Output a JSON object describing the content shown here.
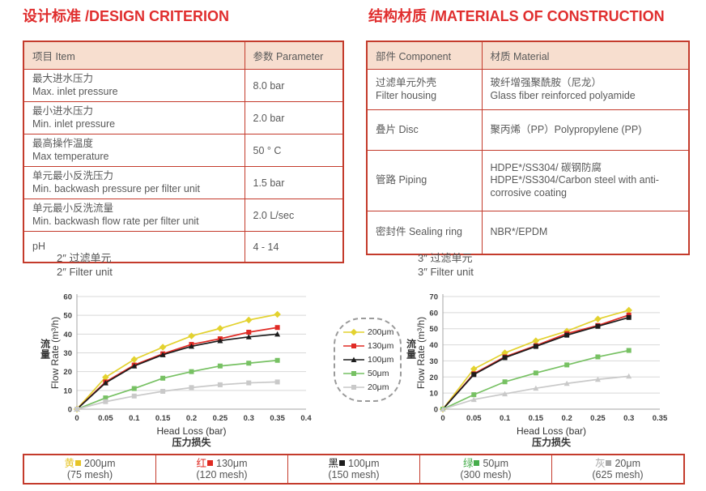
{
  "design": {
    "heading": "设计标准 /DESIGN CRITERION",
    "col_item": "项目 Item",
    "col_param": "参数 Parameter",
    "rows": [
      {
        "zh": "最大进水压力",
        "en": "Max. inlet pressure",
        "value": "8.0 bar"
      },
      {
        "zh": "最小进水压力",
        "en": "Min. inlet pressure",
        "value": "2.0 bar"
      },
      {
        "zh": "最高操作温度",
        "en": "Max temperature",
        "value": "50 ° C"
      },
      {
        "zh": "单元最小反洗压力",
        "en": "Min. backwash pressure per filter unit",
        "value": "1.5 bar"
      },
      {
        "zh": "单元最小反洗流量",
        "en": "Min. backwash flow rate per filter unit",
        "value": "2.0 L/sec"
      },
      {
        "zh": "pH",
        "value": "4 - 14"
      }
    ]
  },
  "materials": {
    "heading": "结构材质 /MATERIALS OF CONSTRUCTION",
    "col_component": "部件 Component",
    "col_material": "材质 Material",
    "rows": [
      {
        "c1": "过滤单元外壳",
        "c2": "Filter housing",
        "m1": "玻纤增强聚酰胺（尼龙）",
        "m2": "Glass fiber reinforced polyamide"
      },
      {
        "c1": "叠片 Disc",
        "m1": "聚丙烯（PP）Polypropylene (PP)"
      },
      {
        "c1": "管路 Piping",
        "m1": "HDPE*/SS304/ 碳钢防腐",
        "m2": "HDPE*/SS304/Carbon steel with anti-corrosive coating"
      },
      {
        "c1": "密封件 Sealing ring",
        "m1": "NBR*/EPDM"
      }
    ]
  },
  "chart_data": [
    {
      "type": "line",
      "title_zh": "2″ 过滤单元",
      "title_en": "2″ Filter unit",
      "xlabel": "Head Loss (bar)",
      "xlabel_zh": "压力损失",
      "ylabel_zh": "流量",
      "ylabel": "Flow Rate (m³/h)",
      "xlim": [
        0,
        0.4
      ],
      "ylim": [
        0,
        60
      ],
      "xticks": [
        "0",
        "0.05",
        "0.1",
        "0.15",
        "0.2",
        "0.25",
        "0.3",
        "0.35",
        "0.4"
      ],
      "yticks": [
        0,
        10,
        20,
        30,
        40,
        50,
        60
      ],
      "grid": true,
      "legend_position": "right-outside",
      "x": [
        0,
        0.05,
        0.1,
        0.15,
        0.2,
        0.25,
        0.3,
        0.35
      ],
      "series": [
        {
          "name": "200μm",
          "color": "#e3d22f",
          "marker": "diamond",
          "values": [
            0,
            17,
            26.5,
            33,
            39,
            43,
            47.5,
            50.5
          ]
        },
        {
          "name": "130μm",
          "color": "#e02b25",
          "marker": "square",
          "values": [
            0,
            14.5,
            23.5,
            29.5,
            34.5,
            37.5,
            41,
            43.5
          ]
        },
        {
          "name": "100μm",
          "color": "#1c1c1c",
          "marker": "triangle",
          "values": [
            0,
            14,
            23,
            29,
            33.5,
            36.5,
            38.5,
            40
          ]
        },
        {
          "name": "50μm",
          "color": "#77c163",
          "marker": "square",
          "values": [
            0,
            6,
            11,
            16.5,
            20,
            23,
            24.5,
            26
          ]
        },
        {
          "name": "20μm",
          "color": "#c9c9c9",
          "marker": "square",
          "values": [
            0,
            4,
            7,
            9.5,
            11.5,
            13,
            14,
            14.5
          ]
        }
      ]
    },
    {
      "type": "line",
      "title_zh": "3″ 过滤单元",
      "title_en": "3″ Filter unit",
      "xlabel": "Head Loss (bar)",
      "xlabel_zh": "压力损失",
      "ylabel_zh": "流量",
      "ylabel": "Flow Rate (m³/h)",
      "xlim": [
        0,
        0.35
      ],
      "ylim": [
        0,
        70
      ],
      "xticks": [
        "0",
        "0.05",
        "0.1",
        "0.15",
        "0.2",
        "0.25",
        "0.3",
        "0.35"
      ],
      "yticks": [
        0,
        10,
        20,
        30,
        40,
        50,
        60,
        70
      ],
      "grid": true,
      "legend_position": "none",
      "x": [
        0,
        0.05,
        0.1,
        0.15,
        0.2,
        0.25,
        0.3
      ],
      "series": [
        {
          "name": "200μm",
          "color": "#e3d22f",
          "marker": "diamond",
          "values": [
            0,
            25,
            35,
            42.5,
            48.5,
            56,
            61.5
          ]
        },
        {
          "name": "130μm",
          "color": "#e02b25",
          "marker": "square",
          "values": [
            0,
            22,
            32.5,
            39.5,
            47,
            52,
            58.5
          ]
        },
        {
          "name": "100μm",
          "color": "#1c1c1c",
          "marker": "square",
          "values": [
            0,
            21.5,
            32,
            39,
            46,
            51.5,
            57
          ]
        },
        {
          "name": "50μm",
          "color": "#77c163",
          "marker": "square",
          "values": [
            0,
            9,
            17,
            22.5,
            27.5,
            32.5,
            36.5
          ]
        },
        {
          "name": "20μm",
          "color": "#c9c9c9",
          "marker": "triangle",
          "values": [
            0,
            6,
            9.5,
            13,
            16,
            18.5,
            20.5
          ]
        }
      ]
    }
  ],
  "mid_legend": {
    "items": [
      {
        "label": "200μm",
        "color": "#e3d22f",
        "marker": "diamond"
      },
      {
        "label": "130μm",
        "color": "#e02b25",
        "marker": "square"
      },
      {
        "label": "100μm",
        "color": "#1c1c1c",
        "marker": "triangle"
      },
      {
        "label": "50μm",
        "color": "#77c163",
        "marker": "square"
      },
      {
        "label": "20μm",
        "color": "#c9c9c9",
        "marker": "square"
      }
    ]
  },
  "bottom_legend": {
    "items": [
      {
        "cn": "黄",
        "size": "200μm",
        "mesh": "(75 mesh)",
        "color": "#e6c428"
      },
      {
        "cn": "红",
        "size": "130μm",
        "mesh": "(120 mesh)",
        "color": "#df2b23"
      },
      {
        "cn": "黑",
        "size": "100μm",
        "mesh": "(150 mesh)",
        "color": "#1d1d1d"
      },
      {
        "cn": "绿",
        "size": "50μm",
        "mesh": "(300 mesh)",
        "color": "#46ad4c"
      },
      {
        "cn": "灰",
        "size": "20μm",
        "mesh": "(625 mesh)",
        "color": "#a9a9a9"
      }
    ]
  }
}
